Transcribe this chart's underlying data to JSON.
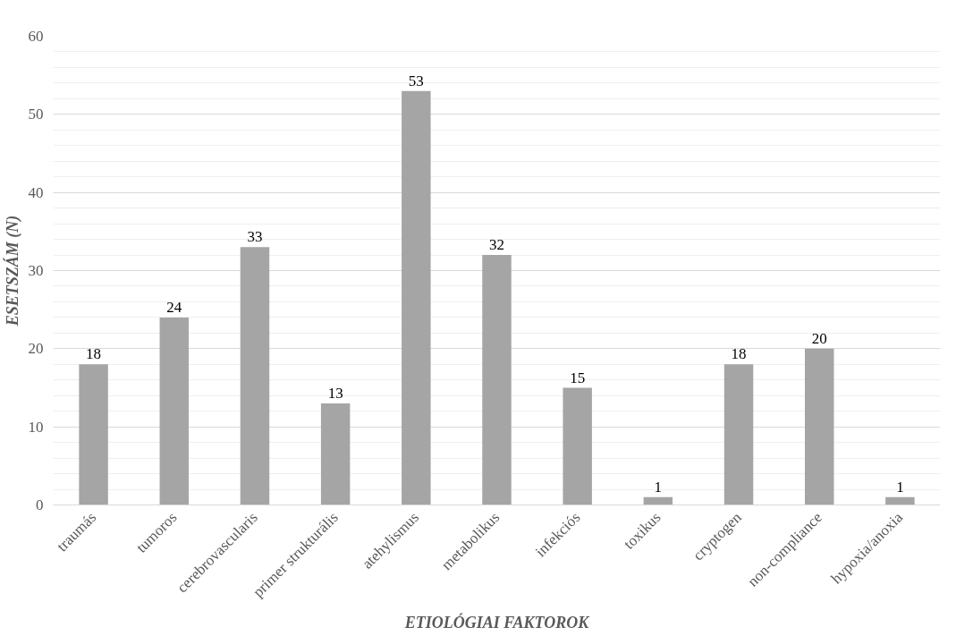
{
  "chart_data": {
    "type": "bar",
    "xlabel": "ETIOLÓGIAI FAKTOROK",
    "ylabel": "ESETSZÁM (N)",
    "categories": [
      "traumás",
      "tumoros",
      "cerebrovascularis",
      "primer strukturális",
      "atehylismus",
      "metabolikus",
      "infekciós",
      "toxikus",
      "cryptogen",
      "non-compliance",
      "hypoxia/anoxia"
    ],
    "values": [
      18,
      24,
      33,
      13,
      53,
      32,
      15,
      1,
      18,
      20,
      1
    ],
    "color": "#a5a5a5",
    "ylim": [
      0,
      60
    ],
    "yticks": [
      0,
      10,
      20,
      30,
      40,
      50,
      60
    ],
    "grid": "y",
    "data_labels": true
  }
}
